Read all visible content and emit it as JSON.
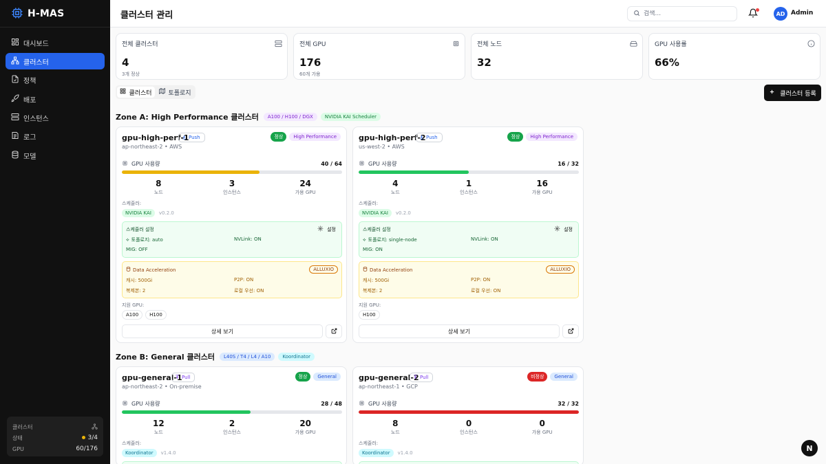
{
  "app": {
    "name": "H-MAS"
  },
  "sidebar": {
    "items": [
      {
        "label": "대시보드",
        "icon": "dashboard-icon"
      },
      {
        "label": "클러스터",
        "icon": "cluster-icon"
      },
      {
        "label": "정책",
        "icon": "policy-icon"
      },
      {
        "label": "배포",
        "icon": "rocket-icon"
      },
      {
        "label": "인스턴스",
        "icon": "server-icon"
      },
      {
        "label": "로그",
        "icon": "log-icon"
      },
      {
        "label": "모델",
        "icon": "database-icon"
      }
    ],
    "status": {
      "title": "클러스터",
      "state_label": "상태",
      "state_value": "3/4",
      "gpu_label": "GPU",
      "gpu_value": "60/176"
    }
  },
  "header": {
    "title": "클러스터 관리",
    "search_placeholder": "검색...",
    "user_initials": "AD",
    "user_name": "Admin"
  },
  "stats": [
    {
      "title": "전체 클러스터",
      "value": "4",
      "sub": "3개 정상"
    },
    {
      "title": "전체 GPU",
      "value": "176",
      "sub": "60개 가용"
    },
    {
      "title": "전체 노드",
      "value": "32",
      "sub": ""
    },
    {
      "title": "GPU 사용률",
      "value": "66%",
      "sub": ""
    }
  ],
  "toolbar": {
    "tab_cluster": "클러스터",
    "tab_topology": "토폴로지",
    "register": "클러스터 등록"
  },
  "zones": [
    {
      "title": "Zone A: High Performance 클러스터",
      "gpus": "A100 / H100 / DGX",
      "scheduler": "NVIDIA KAI Scheduler"
    },
    {
      "title": "Zone B: General 클러스터",
      "gpus": "L40S / T4 / L4 / A10",
      "scheduler": "Koordinator"
    }
  ],
  "labels": {
    "gpu_usage": "GPU 사용량",
    "nodes": "노드",
    "instances": "인스턴스",
    "avail_gpu": "가용 GPU",
    "scheduler": "스케줄러:",
    "scheduler_settings": "스케줄러 설정",
    "settings": "설정",
    "data_accel": "Data Acceleration",
    "supported_gpu": "지원 GPU:",
    "detail": "상세 보기"
  },
  "clusters": [
    {
      "name": "gpu-high-perf-1",
      "sync": "Push",
      "location": "ap-northeast-2 • AWS",
      "status": "정상",
      "type": "High Performance",
      "gpu_count": "40 / 64",
      "gpu_usage_pct": 62.5,
      "bar_color": "#eab308",
      "nodes": "8",
      "instances": "3",
      "avail": "24",
      "scheduler": "NVIDIA KAI",
      "version": "v0.2.0",
      "topology": "토폴로지: auto",
      "nvlink": "NVLink: ON",
      "mig": "MIG: OFF",
      "accel": "ALLUXIO",
      "cache": "캐시: 500Gi",
      "p2p": "P2P: ON",
      "replicas": "복제본: 2",
      "local": "로컬 우선: ON",
      "gpus": [
        "A100",
        "H100"
      ]
    },
    {
      "name": "gpu-high-perf-2",
      "sync": "Push",
      "location": "us-west-2 • AWS",
      "status": "정상",
      "type": "High Performance",
      "gpu_count": "16 / 32",
      "gpu_usage_pct": 50,
      "bar_color": "#22c55e",
      "nodes": "4",
      "instances": "1",
      "avail": "16",
      "scheduler": "NVIDIA KAI",
      "version": "v0.2.0",
      "topology": "토폴로지: single-node",
      "nvlink": "NVLink: ON",
      "mig": "MIG: ON",
      "accel": "ALLUXIO",
      "cache": "캐시: 500Gi",
      "p2p": "P2P: ON",
      "replicas": "복제본: 2",
      "local": "로컬 우선: ON",
      "gpus": [
        "H100"
      ]
    },
    {
      "name": "gpu-general-1",
      "sync": "Pull",
      "location": "ap-northeast-2 • On-premise",
      "status": "정상",
      "type": "General",
      "gpu_count": "28 / 48",
      "gpu_usage_pct": 58.3,
      "bar_color": "#22c55e",
      "nodes": "12",
      "instances": "2",
      "avail": "20",
      "scheduler": "Koordinator",
      "version": "v1.4.0"
    },
    {
      "name": "gpu-general-2",
      "sync": "Pull",
      "location": "ap-northeast-1 • GCP",
      "status": "비정상",
      "type": "General",
      "gpu_count": "32 / 32",
      "gpu_usage_pct": 100,
      "bar_color": "#dc2626",
      "nodes": "8",
      "instances": "0",
      "avail": "0",
      "scheduler": "Koordinator",
      "version": "v1.4.0"
    }
  ],
  "fab": "N"
}
